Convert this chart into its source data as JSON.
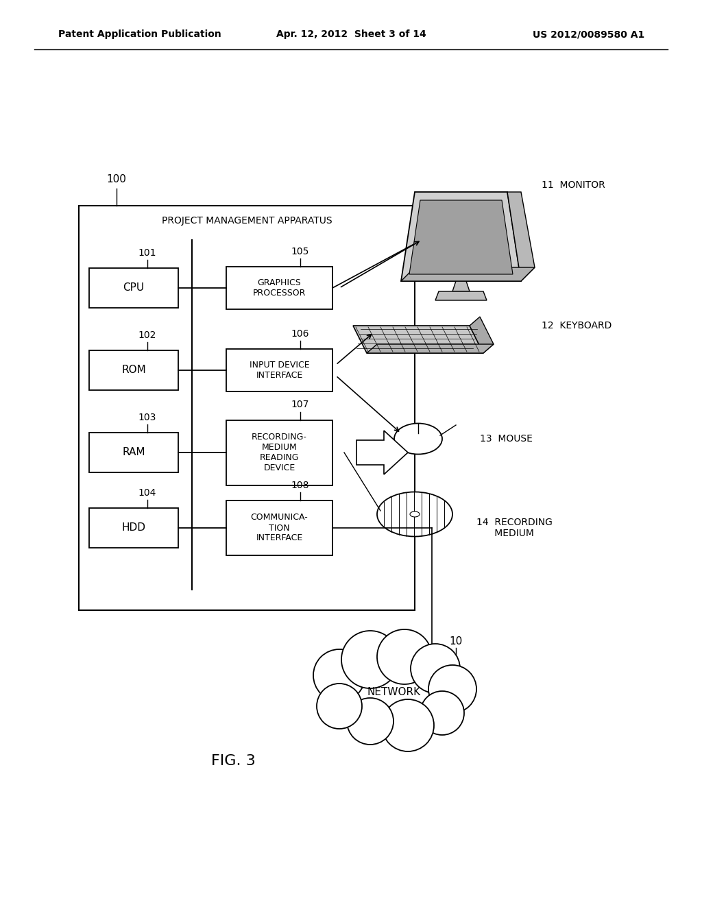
{
  "bg_color": "#ffffff",
  "header_left": "Patent Application Publication",
  "header_center": "Apr. 12, 2012  Sheet 3 of 14",
  "header_right": "US 2012/0089580 A1",
  "fig_label": "FIG. 3",
  "apparatus_label": "100",
  "apparatus_title": "PROJECT MANAGEMENT APPARATUS",
  "left_boxes": [
    {
      "label": "101",
      "text": "CPU"
    },
    {
      "label": "102",
      "text": "ROM"
    },
    {
      "label": "103",
      "text": "RAM"
    },
    {
      "label": "104",
      "text": "HDD"
    }
  ],
  "right_boxes": [
    {
      "label": "105",
      "text": "GRAPHICS\nPROCESSOR"
    },
    {
      "label": "106",
      "text": "INPUT DEVICE\nINTERFACE"
    },
    {
      "label": "107",
      "text": "RECORDING-\nMEDIUM\nREADING\nDEVICE"
    },
    {
      "label": "108",
      "text": "COMMUNICA-\nTION\nINTERFACE"
    }
  ],
  "ext_labels": [
    "11",
    "12",
    "13",
    "14"
  ],
  "ext_names": [
    "MONITOR",
    "KEYBOARD",
    "MOUSE",
    "RECORDING\nMEDIUM"
  ],
  "network_label": "10",
  "network_text": "NETWORK"
}
